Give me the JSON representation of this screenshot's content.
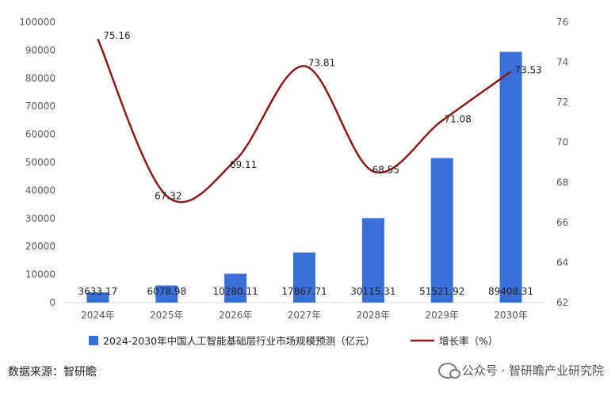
{
  "chart_data": {
    "type": "bar",
    "categories": [
      "2024年",
      "2025年",
      "2026年",
      "2027年",
      "2028年",
      "2029年",
      "2030年"
    ],
    "series": [
      {
        "name": "2024-2030年中国人工智能基础层行业市场规模预测（亿元）",
        "type": "bar",
        "axis": "left",
        "values": [
          3633.17,
          6078.98,
          10280.11,
          17867.71,
          30115.31,
          51521.92,
          89408.31
        ],
        "labels": [
          "3633.17",
          "6078.98",
          "10280.11",
          "17867.71",
          "30115.31",
          "51521.92",
          "89408.31"
        ],
        "color": "#3a6fd8"
      },
      {
        "name": "增长率（%）",
        "type": "line",
        "axis": "right",
        "values": [
          75.16,
          67.32,
          69.11,
          73.81,
          68.55,
          71.08,
          73.53
        ],
        "labels": [
          "75.16",
          "67.32",
          "69.11",
          "73.81",
          "68.55",
          "71.08",
          "73.53"
        ],
        "color": "#8b1a1a"
      }
    ],
    "y_left": {
      "ylim": [
        0,
        100000
      ],
      "ticks": [
        "0",
        "10000",
        "20000",
        "30000",
        "40000",
        "50000",
        "60000",
        "70000",
        "80000",
        "90000",
        "100000"
      ]
    },
    "y_right": {
      "ylim": [
        62,
        76
      ],
      "ticks": [
        "62",
        "64",
        "66",
        "68",
        "70",
        "72",
        "74",
        "76"
      ]
    },
    "grid": false,
    "legend_position": "bottom"
  },
  "footer": {
    "source": "数据来源：智研瞻",
    "watermark": "公众号 · 智研瞻产业研究院"
  }
}
